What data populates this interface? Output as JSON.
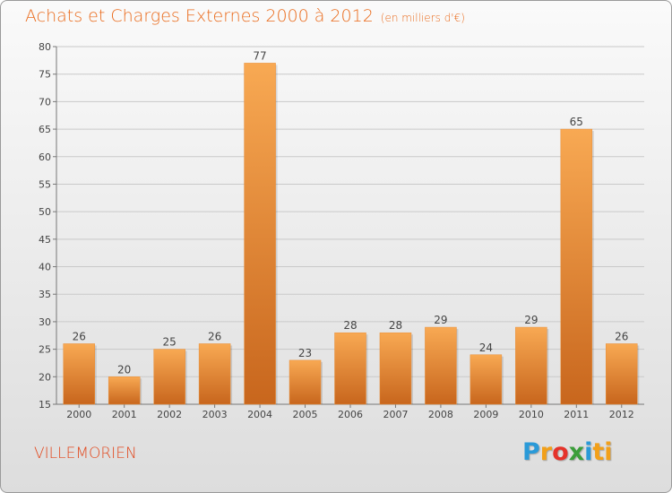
{
  "title": "Achats et Charges Externes 2000 à 2012",
  "unit": "(en milliers d'€)",
  "commune": "VILLEMORIEN",
  "logo": [
    "P",
    "r",
    "o",
    "x",
    "i",
    "ti"
  ],
  "colors": {
    "bar_top": "#f8a953",
    "bar_bottom": "#c8661d",
    "title": "#ea6b1c",
    "commune": "#e2491f"
  },
  "chart_data": {
    "type": "bar",
    "title": "Achats et Charges Externes 2000 à 2012",
    "subtitle": "(en milliers d'€)",
    "categories": [
      "2000",
      "2001",
      "2002",
      "2003",
      "2004",
      "2005",
      "2006",
      "2007",
      "2008",
      "2009",
      "2010",
      "2011",
      "2012"
    ],
    "values": [
      26,
      20,
      25,
      26,
      77,
      23,
      28,
      28,
      29,
      24,
      29,
      65,
      26
    ],
    "ylim": [
      15,
      80
    ],
    "yticks": [
      15,
      20,
      25,
      30,
      35,
      40,
      45,
      50,
      55,
      60,
      65,
      70,
      75,
      80
    ],
    "grid": true,
    "legend": "none"
  }
}
